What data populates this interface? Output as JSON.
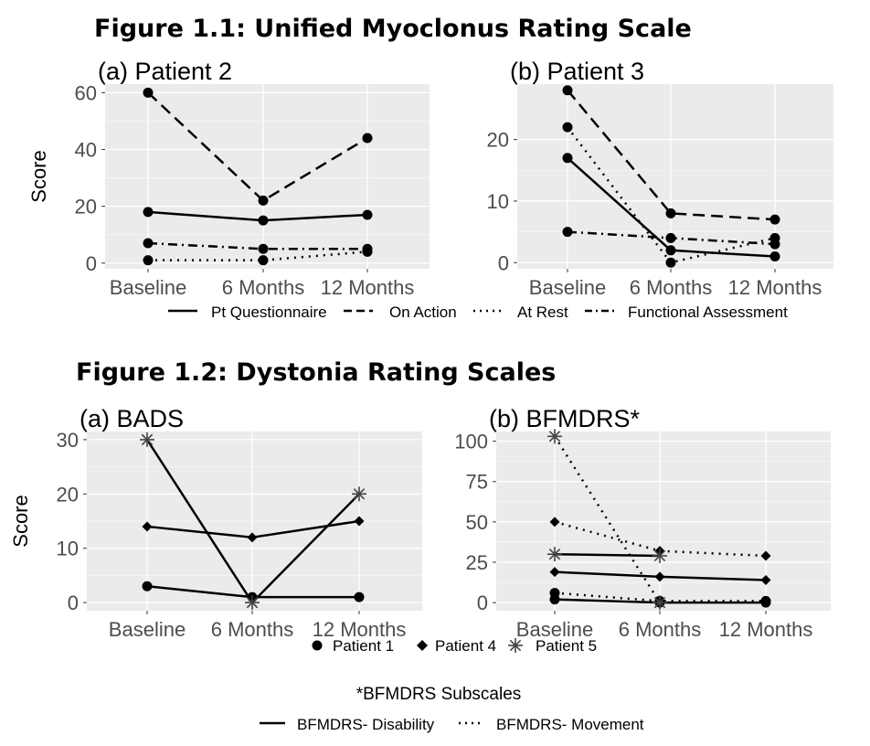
{
  "figures": [
    {
      "title": "Figure 1.1: Unified Myoclonus Rating Scale"
    },
    {
      "title": "Figure 1.2: Dystonia Rating Scales"
    }
  ],
  "legends": {
    "myoclonus": [
      "Pt Questionnaire",
      "On Action",
      "At Rest",
      "Functional Assessment"
    ],
    "patients": [
      "Patient 1",
      "Patient 4",
      "Patient 5"
    ],
    "subscales_title": "*BFMDRS Subscales",
    "subscales": [
      "BFMDRS- Disability",
      "BFMDRS- Movement"
    ]
  },
  "colors": {
    "panel_bg": "#ebebeb",
    "grid": "#ffffff",
    "ink": "#000000",
    "tick_text": "#4d4d4d"
  },
  "chart_data": [
    {
      "type": "line",
      "title": "(a) Patient 2",
      "ylabel": "Score",
      "categories": [
        "Baseline",
        "6 Months",
        "12 Months"
      ],
      "ylim": [
        -2,
        63
      ],
      "yticks": [
        0,
        20,
        40,
        60
      ],
      "grid": true,
      "series": [
        {
          "name": "Pt Questionnaire",
          "dash": "solid",
          "marker": "circle",
          "values": [
            18,
            15,
            17
          ]
        },
        {
          "name": "On Action",
          "dash": "dashed",
          "marker": "circle",
          "values": [
            60,
            22,
            44
          ]
        },
        {
          "name": "At Rest",
          "dash": "dotted",
          "marker": "circle",
          "values": [
            1,
            1,
            4
          ]
        },
        {
          "name": "Functional Assessment",
          "dash": "dotdash",
          "marker": "circle",
          "values": [
            7,
            5,
            5
          ]
        }
      ]
    },
    {
      "type": "line",
      "title": "(b) Patient 3",
      "ylabel": "",
      "categories": [
        "Baseline",
        "6 Months",
        "12 Months"
      ],
      "ylim": [
        -1,
        29
      ],
      "yticks": [
        0,
        10,
        20
      ],
      "grid": true,
      "series": [
        {
          "name": "Pt Questionnaire",
          "dash": "solid",
          "marker": "circle",
          "values": [
            17,
            2,
            1
          ]
        },
        {
          "name": "On Action",
          "dash": "dashed",
          "marker": "circle",
          "values": [
            28,
            8,
            7
          ]
        },
        {
          "name": "At Rest",
          "dash": "dotted",
          "marker": "circle",
          "values": [
            22,
            0,
            4
          ]
        },
        {
          "name": "Functional Assessment",
          "dash": "dotdash",
          "marker": "circle",
          "values": [
            5,
            4,
            3
          ]
        }
      ]
    },
    {
      "type": "line",
      "title": "(a) BADS",
      "ylabel": "Score",
      "categories": [
        "Baseline",
        "6 Months",
        "12 Months"
      ],
      "ylim": [
        -1.5,
        31.5
      ],
      "yticks": [
        0,
        10,
        20,
        30
      ],
      "grid": true,
      "series": [
        {
          "name": "Patient 1",
          "dash": "solid",
          "marker": "circle",
          "values": [
            3,
            1,
            1
          ]
        },
        {
          "name": "Patient 4",
          "dash": "solid",
          "marker": "diamond",
          "values": [
            14,
            12,
            15
          ]
        },
        {
          "name": "Patient 5",
          "dash": "solid",
          "marker": "asterisk",
          "values": [
            30,
            0,
            20
          ]
        }
      ]
    },
    {
      "type": "line",
      "title": "(b) BFMDRS*",
      "ylabel": "",
      "categories": [
        "Baseline",
        "6 Months",
        "12 Months"
      ],
      "ylim": [
        -5,
        106
      ],
      "yticks": [
        0,
        25,
        50,
        75,
        100
      ],
      "grid": true,
      "series": [
        {
          "name": "Patient 1 - BFMDRS- Disability",
          "dash": "solid",
          "marker": "circle",
          "values": [
            2,
            0,
            0
          ]
        },
        {
          "name": "Patient 1 - BFMDRS- Movement",
          "dash": "dotted",
          "marker": "circle",
          "values": [
            6,
            1,
            1
          ]
        },
        {
          "name": "Patient 4 - BFMDRS- Disability",
          "dash": "solid",
          "marker": "diamond",
          "values": [
            19,
            16,
            14
          ]
        },
        {
          "name": "Patient 4 - BFMDRS- Movement",
          "dash": "dotted",
          "marker": "diamond",
          "values": [
            50,
            32,
            29
          ]
        },
        {
          "name": "Patient 5 - BFMDRS- Disability",
          "dash": "solid",
          "marker": "asterisk",
          "values": [
            30,
            29,
            null
          ]
        },
        {
          "name": "Patient 5 - BFMDRS- Movement",
          "dash": "dotted",
          "marker": "asterisk",
          "values": [
            103,
            0,
            null
          ]
        }
      ]
    }
  ]
}
